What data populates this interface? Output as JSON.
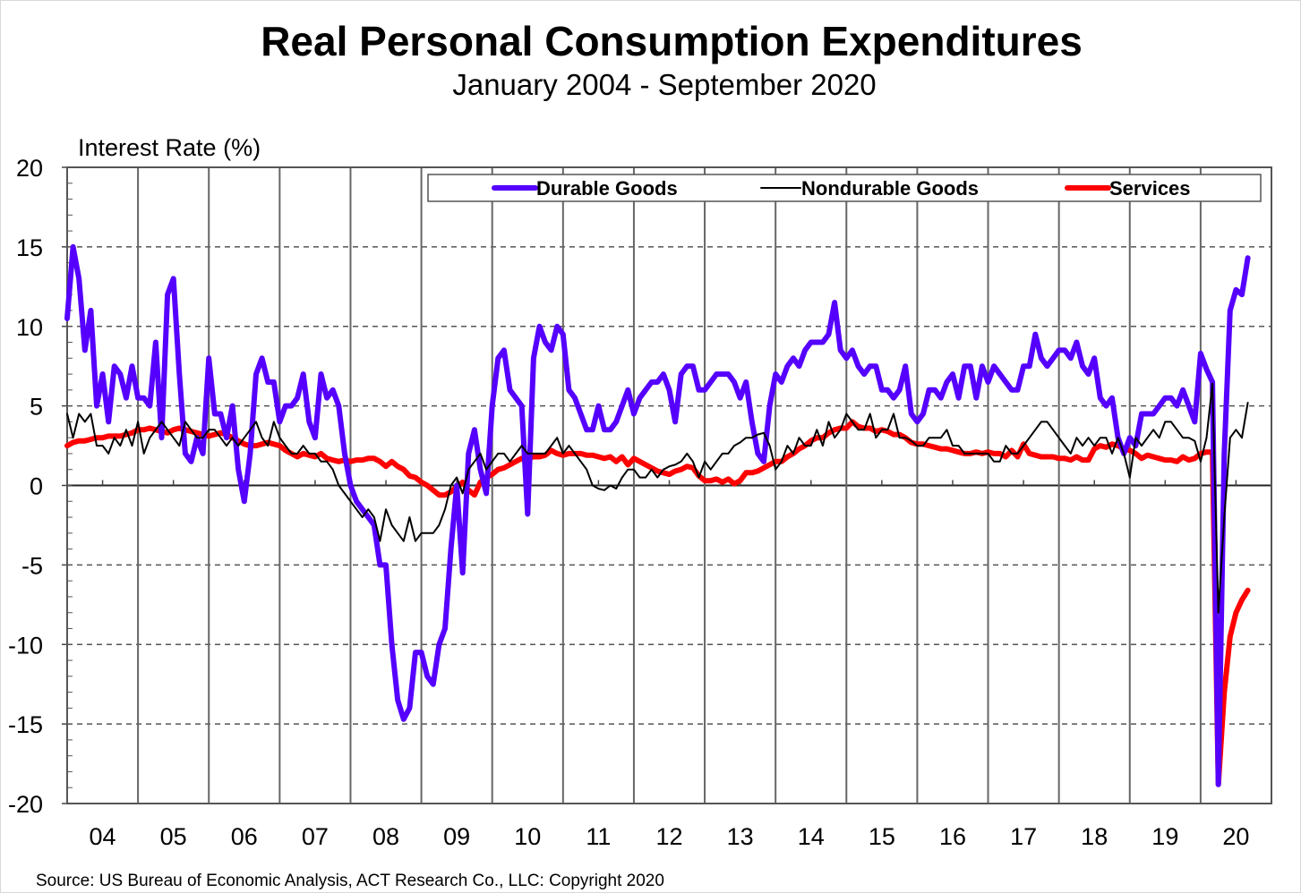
{
  "chart_data": {
    "type": "line",
    "title": "Real Personal Consumption Expenditures",
    "subtitle": "January 2004 - September 2020",
    "ylabel": "Interest Rate (%)",
    "xlabel": "",
    "ylim": [
      -20,
      20
    ],
    "yticks": [
      "20",
      "15",
      "10",
      "5",
      "0",
      "-5",
      "-10",
      "-15",
      "-20"
    ],
    "ytick_values": [
      20,
      15,
      10,
      5,
      0,
      -5,
      -10,
      -15,
      -20
    ],
    "xticks": [
      "04",
      "05",
      "06",
      "07",
      "08",
      "09",
      "10",
      "11",
      "12",
      "13",
      "14",
      "15",
      "16",
      "17",
      "18",
      "19",
      "20"
    ],
    "x_start": "2004-01",
    "x_end": "2020-09",
    "frequency": "monthly",
    "grid": "horizontal dashed, vertical solid at year boundaries",
    "legend_position": "top",
    "source": "Source: US Bureau of Economic Analysis, ACT Research Co., LLC: Copyright 2020",
    "series": [
      {
        "name": "Durable Goods",
        "color": "#5500ff",
        "width": "thick",
        "values": [
          10.5,
          15,
          13,
          8.5,
          11,
          5,
          7,
          4,
          7.5,
          7,
          5.5,
          7.5,
          5.5,
          5.5,
          5,
          9,
          3,
          12,
          13,
          7,
          2,
          1.5,
          3,
          2,
          8,
          4.5,
          4.5,
          3,
          5,
          1,
          -1,
          2,
          7,
          8,
          6.5,
          6.5,
          4,
          5,
          5,
          5.5,
          7,
          4,
          3,
          7,
          5.5,
          6,
          5,
          2,
          0,
          -1,
          -1.5,
          -2,
          -2.5,
          -5,
          -5,
          -10,
          -13.5,
          -14.7,
          -14,
          -10.5,
          -10.5,
          -12,
          -12.5,
          -10,
          -9,
          -4,
          0,
          -5.5,
          2,
          3.5,
          1,
          -0.5,
          5,
          8,
          8.5,
          6,
          5.5,
          5,
          -1.8,
          8,
          10,
          9,
          8.5,
          10,
          9.5,
          6,
          5.5,
          4.5,
          3.5,
          3.5,
          5,
          3.5,
          3.5,
          4,
          5,
          6,
          4.5,
          5.5,
          6,
          6.5,
          6.5,
          7,
          6,
          4,
          7,
          7.5,
          7.5,
          6,
          6,
          6.5,
          7,
          7,
          7,
          6.5,
          5.5,
          6.5,
          4,
          2,
          1.5,
          5,
          7,
          6.5,
          7.5,
          8,
          7.5,
          8.5,
          9,
          9,
          9,
          9.5,
          11.5,
          8.5,
          8,
          8.5,
          7.5,
          7,
          7.5,
          7.5,
          6,
          6,
          5.5,
          6,
          7.5,
          4.5,
          4,
          4.5,
          6,
          6,
          5.5,
          6.5,
          7,
          5.5,
          7.5,
          7.5,
          5.5,
          7.5,
          6.5,
          7.5,
          7,
          6.5,
          6,
          6,
          7.5,
          7.5,
          9.5,
          8,
          7.5,
          8,
          8.5,
          8.5,
          8,
          9,
          7.5,
          7,
          8,
          5.5,
          5,
          5.5,
          3,
          2,
          3,
          2.5,
          4.5,
          4.5,
          4.5,
          5,
          5.5,
          5.5,
          5,
          6,
          5,
          4,
          8.3,
          7.3,
          6.5,
          -18.8,
          2,
          11,
          12.3,
          12,
          14.3
        ]
      },
      {
        "name": "Nondurable Goods",
        "color": "#000000",
        "width": "thin",
        "values": [
          4.5,
          3,
          4.5,
          4,
          4.5,
          2.5,
          2.5,
          2,
          3,
          2.5,
          3.5,
          2.5,
          4,
          2,
          3,
          3.5,
          4,
          3.5,
          3,
          2.5,
          4,
          3.5,
          3,
          3,
          3.5,
          3.5,
          3,
          2.5,
          3,
          2.5,
          3,
          3.5,
          4,
          3,
          2.5,
          4,
          3,
          2.5,
          2,
          2,
          2.5,
          2,
          2,
          1.5,
          1.5,
          1,
          0,
          -0.5,
          -1,
          -1.5,
          -2,
          -1.5,
          -2,
          -3.5,
          -1.5,
          -2.5,
          -3,
          -3.5,
          -2,
          -3.5,
          -3,
          -3,
          -3,
          -2.5,
          -1.5,
          0,
          0.5,
          -0.5,
          1,
          1.5,
          2,
          1,
          1.5,
          2,
          2,
          1.5,
          2,
          2.5,
          2,
          2,
          2,
          2,
          2.5,
          3,
          2,
          2.5,
          2,
          1.5,
          1,
          0,
          -0.2,
          -0.3,
          0,
          -0.2,
          0.5,
          1,
          1,
          0.5,
          0.5,
          1,
          0.5,
          1,
          1.2,
          1.3,
          1.5,
          2,
          1.5,
          0.5,
          1.5,
          1,
          1.5,
          2,
          2,
          2.5,
          2.7,
          3,
          3,
          3.2,
          3.3,
          2.5,
          1,
          1.5,
          2.5,
          2,
          3,
          2.5,
          2.5,
          3.5,
          2.5,
          4,
          3,
          3.5,
          4.5,
          4,
          3.5,
          3.5,
          4.5,
          3,
          3.5,
          3.5,
          4.5,
          3,
          3,
          2.8,
          2.5,
          2.5,
          3,
          3,
          3,
          3.5,
          2.5,
          2.5,
          2,
          2,
          2,
          2,
          2,
          1.5,
          1.5,
          2.5,
          2,
          2,
          2.5,
          3,
          3.5,
          4,
          4,
          3.5,
          3,
          2.5,
          2,
          3,
          2.5,
          3,
          2.5,
          3,
          3,
          2,
          3,
          2,
          0.5,
          3,
          2.5,
          3,
          3.5,
          3,
          4,
          4,
          3.5,
          3,
          3,
          2.8,
          1.5,
          3,
          6.4,
          -8,
          -2,
          3,
          3.5,
          3,
          5.2
        ]
      },
      {
        "name": "Services",
        "color": "#ff0000",
        "width": "thick",
        "values": [
          2.5,
          2.7,
          2.8,
          2.8,
          2.9,
          3,
          3,
          3.1,
          3.1,
          3.1,
          3.2,
          3.3,
          3.5,
          3.5,
          3.6,
          3.5,
          3.4,
          3.3,
          3.5,
          3.6,
          3.5,
          3.4,
          3.3,
          3.2,
          3.1,
          3.2,
          3.3,
          3.2,
          3,
          2.8,
          2.6,
          2.5,
          2.5,
          2.6,
          2.7,
          2.6,
          2.5,
          2.2,
          2,
          1.8,
          2,
          1.9,
          1.8,
          2,
          1.7,
          1.6,
          1.5,
          1.6,
          1.5,
          1.6,
          1.6,
          1.7,
          1.7,
          1.5,
          1.2,
          1.5,
          1.2,
          1,
          0.6,
          0.5,
          0.2,
          0,
          -0.3,
          -0.6,
          -0.6,
          -0.4,
          -0.1,
          0.2,
          -0.3,
          -0.6,
          0.2,
          0.5,
          0.7,
          1,
          1.1,
          1.3,
          1.5,
          1.7,
          1.7,
          1.8,
          1.8,
          1.9,
          2.2,
          2,
          1.9,
          2,
          2,
          2,
          1.9,
          1.9,
          1.8,
          1.7,
          1.8,
          1.5,
          1.8,
          1.3,
          1.7,
          1.5,
          1.3,
          1.1,
          0.9,
          0.8,
          0.7,
          0.9,
          1,
          1.2,
          1.1,
          0.6,
          0.3,
          0.3,
          0.4,
          0.2,
          0.4,
          0.1,
          0.3,
          0.8,
          0.8,
          0.9,
          1.1,
          1.3,
          1.5,
          1.5,
          1.8,
          2,
          2.3,
          2.5,
          2.8,
          3,
          3,
          3.3,
          3.5,
          3.6,
          3.6,
          4,
          3.7,
          3.6,
          3.6,
          3.4,
          3.5,
          3.4,
          3.2,
          3.2,
          3,
          2.7,
          2.6,
          2.6,
          2.5,
          2.4,
          2.3,
          2.3,
          2.2,
          2.1,
          2,
          2,
          2.1,
          2,
          2.1,
          2,
          2,
          1.8,
          2.2,
          1.8,
          2.6,
          2,
          1.9,
          1.8,
          1.8,
          1.8,
          1.7,
          1.7,
          1.6,
          1.8,
          1.6,
          1.6,
          2.3,
          2.5,
          2.4,
          2.6,
          2.5,
          2.3,
          2.2,
          2,
          1.7,
          1.9,
          1.8,
          1.7,
          1.6,
          1.6,
          1.5,
          1.8,
          1.6,
          1.7,
          2,
          2.1,
          2.1,
          -18.8,
          -13,
          -9.5,
          -8,
          -7.2,
          -6.6
        ]
      }
    ]
  }
}
